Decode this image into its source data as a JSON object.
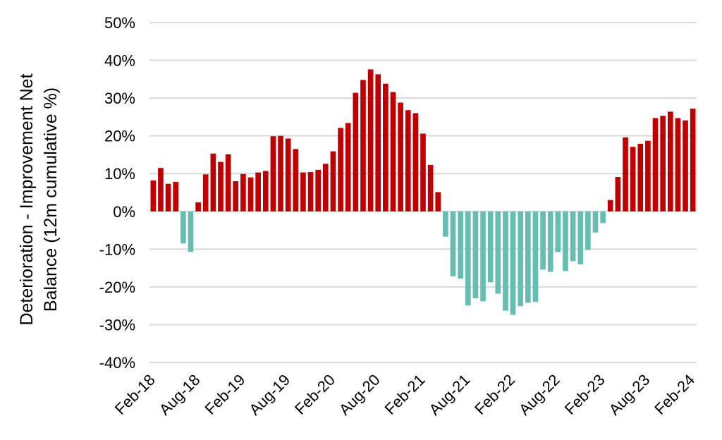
{
  "chart_data": {
    "type": "bar",
    "title": "",
    "xlabel": "",
    "ylabel": "Deterioration - Improvement Net Balance (12m cumulative %)",
    "ylabel_lines": [
      "Deterioration - Improvement Net",
      "Balance (12m cumulative %)"
    ],
    "ylim": [
      -40,
      50
    ],
    "y_ticks": [
      50,
      40,
      30,
      20,
      10,
      0,
      -10,
      -20,
      -30,
      -40
    ],
    "y_tick_labels": [
      "50%",
      "40%",
      "30%",
      "20%",
      "10%",
      "0%",
      "-10%",
      "-20%",
      "-30%",
      "-40%"
    ],
    "x_tick_labels": [
      "Feb-18",
      "Aug-18",
      "Feb-19",
      "Aug-19",
      "Feb-20",
      "Aug-20",
      "Feb-21",
      "Aug-21",
      "Feb-22",
      "Aug-22",
      "Feb-23",
      "Aug-23",
      "Feb-24"
    ],
    "grid": true,
    "legend": "none",
    "colors": {
      "positive": "#c00000",
      "negative": "#66bdb1",
      "grid": "#d9d9d9"
    },
    "categories": [
      "Feb-18",
      "Mar-18",
      "Apr-18",
      "May-18",
      "Jun-18",
      "Jul-18",
      "Aug-18",
      "Sep-18",
      "Oct-18",
      "Nov-18",
      "Dec-18",
      "Jan-19",
      "Feb-19",
      "Mar-19",
      "Apr-19",
      "May-19",
      "Jun-19",
      "Jul-19",
      "Aug-19",
      "Sep-19",
      "Oct-19",
      "Nov-19",
      "Dec-19",
      "Jan-20",
      "Feb-20",
      "Mar-20",
      "Apr-20",
      "May-20",
      "Jun-20",
      "Jul-20",
      "Aug-20",
      "Sep-20",
      "Oct-20",
      "Nov-20",
      "Dec-20",
      "Jan-21",
      "Feb-21",
      "Mar-21",
      "Apr-21",
      "May-21",
      "Jun-21",
      "Jul-21",
      "Aug-21",
      "Sep-21",
      "Oct-21",
      "Nov-21",
      "Dec-21",
      "Jan-22",
      "Feb-22",
      "Mar-22",
      "Apr-22",
      "May-22",
      "Jun-22",
      "Jul-22",
      "Aug-22",
      "Sep-22",
      "Oct-22",
      "Nov-22",
      "Dec-22",
      "Jan-23",
      "Feb-23",
      "Mar-23",
      "Apr-23",
      "May-23",
      "Jun-23",
      "Jul-23",
      "Aug-23",
      "Sep-23",
      "Oct-23",
      "Nov-23",
      "Dec-23",
      "Jan-24",
      "Feb-24"
    ],
    "values": [
      8.2,
      11.5,
      7.3,
      7.8,
      -8.5,
      -10.7,
      2.4,
      9.8,
      15.3,
      13.1,
      15.1,
      8.0,
      9.9,
      9.0,
      10.3,
      10.7,
      19.9,
      20.0,
      19.3,
      16.5,
      10.3,
      10.4,
      11.0,
      12.6,
      15.9,
      22.1,
      23.4,
      31.4,
      34.8,
      37.6,
      36.3,
      33.8,
      31.6,
      28.8,
      26.8,
      26.0,
      20.6,
      12.3,
      5.1,
      -6.7,
      -17.2,
      -17.8,
      -24.9,
      -23.0,
      -23.8,
      -18.8,
      -21.8,
      -26.3,
      -27.4,
      -25.1,
      -24.2,
      -24.0,
      -15.4,
      -16.0,
      -10.8,
      -15.8,
      -13.2,
      -14.0,
      -10.2,
      -5.6,
      -3.1,
      3.0,
      9.1,
      19.6,
      17.1,
      17.9,
      18.7,
      24.7,
      25.3,
      26.4,
      24.7,
      24.1,
      27.2
    ]
  }
}
